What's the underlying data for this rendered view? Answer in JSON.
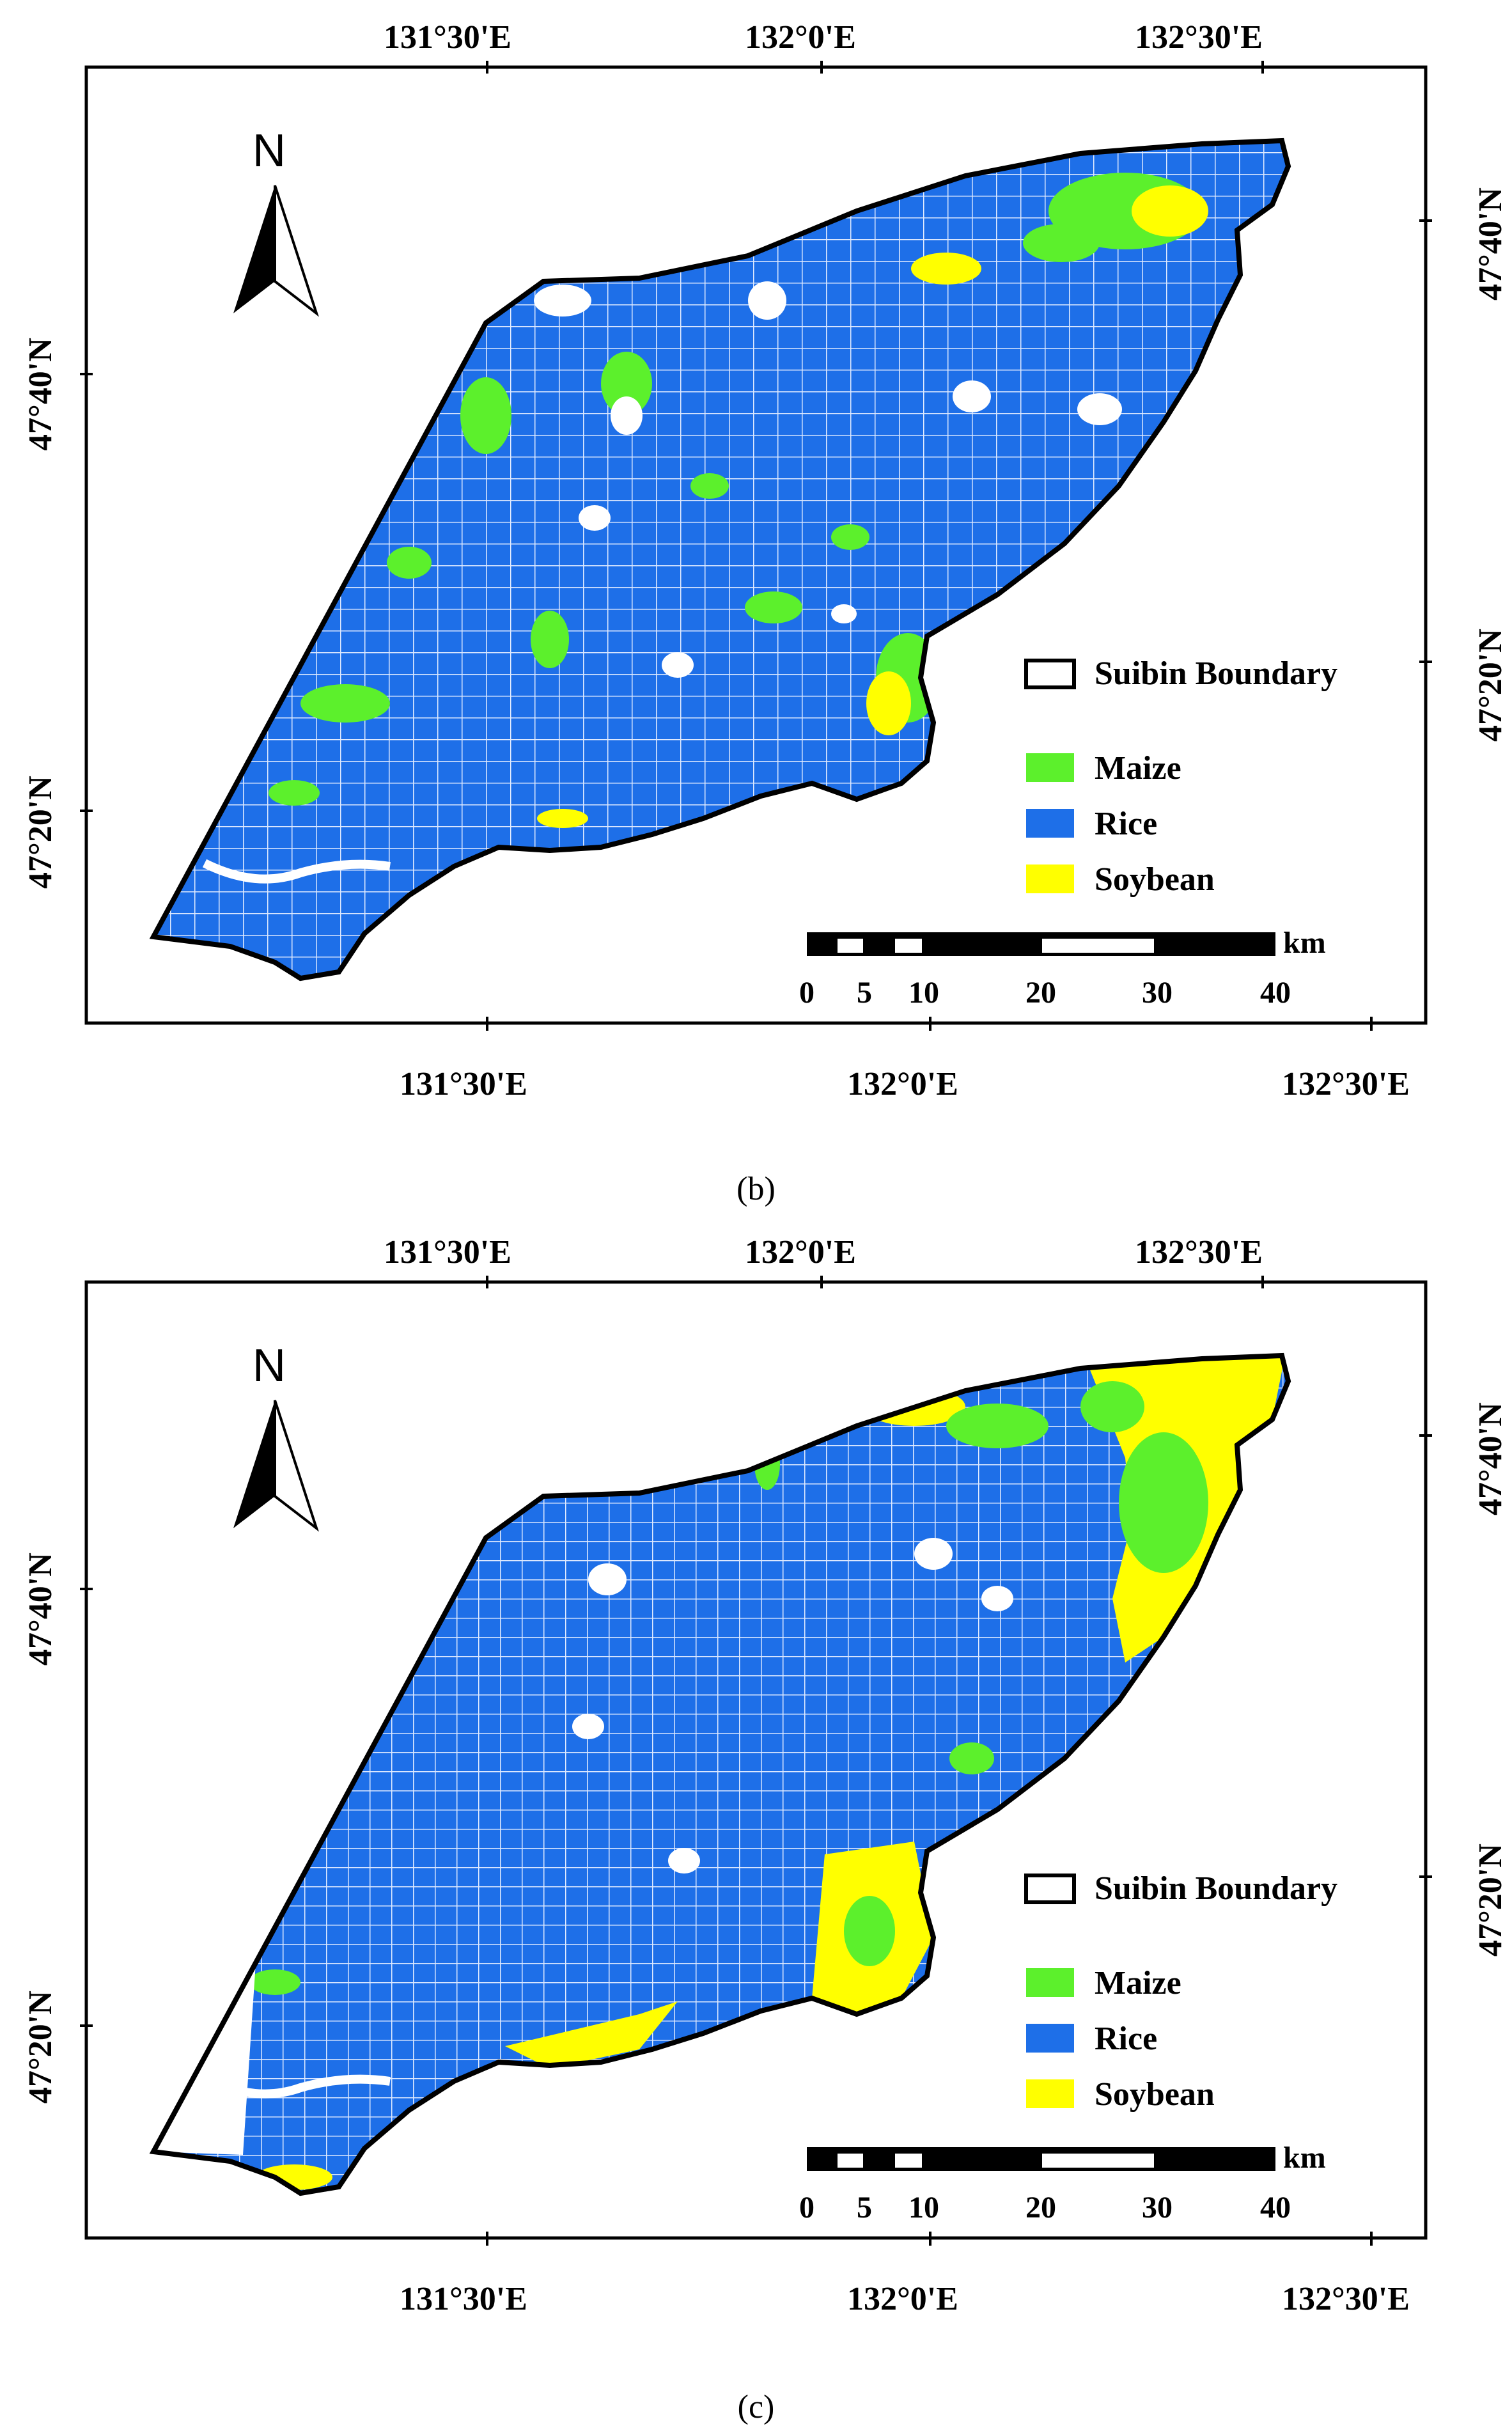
{
  "panels": [
    {
      "id": "b",
      "caption": "(b)",
      "top_labels": [
        "131°30'E",
        "132°0'E",
        "132°30'E"
      ],
      "bottom_labels": [
        "131°30'E",
        "132°0'E",
        "132°30'E"
      ],
      "left_labels": [
        "47°40'N",
        "47°20'N"
      ],
      "right_labels": [
        "47°40'N",
        "47°20'N"
      ],
      "north_label": "N",
      "legend": {
        "boundary": "Suibin Boundary",
        "items": [
          {
            "label": "Maize",
            "color": "#5CF02C"
          },
          {
            "label": "Rice",
            "color": "#1E6FE8"
          },
          {
            "label": "Soybean",
            "color": "#FFFF00"
          }
        ]
      },
      "scale_bar": {
        "ticks": [
          "0",
          "5",
          "10",
          "20",
          "30",
          "40"
        ],
        "unit": "km"
      }
    },
    {
      "id": "c",
      "caption": "(c)",
      "top_labels": [
        "131°30'E",
        "132°0'E",
        "132°30'E"
      ],
      "bottom_labels": [
        "131°30'E",
        "132°0'E",
        "132°30'E"
      ],
      "left_labels": [
        "47°40'N",
        "47°20'N"
      ],
      "right_labels": [
        "47°40'N",
        "47°20'N"
      ],
      "north_label": "N",
      "legend": {
        "boundary": "Suibin Boundary",
        "items": [
          {
            "label": "Maize",
            "color": "#5CF02C"
          },
          {
            "label": "Rice",
            "color": "#1E6FE8"
          },
          {
            "label": "Soybean",
            "color": "#FFFF00"
          }
        ]
      },
      "scale_bar": {
        "ticks": [
          "0",
          "5",
          "10",
          "20",
          "30",
          "40"
        ],
        "unit": "km"
      }
    }
  ]
}
